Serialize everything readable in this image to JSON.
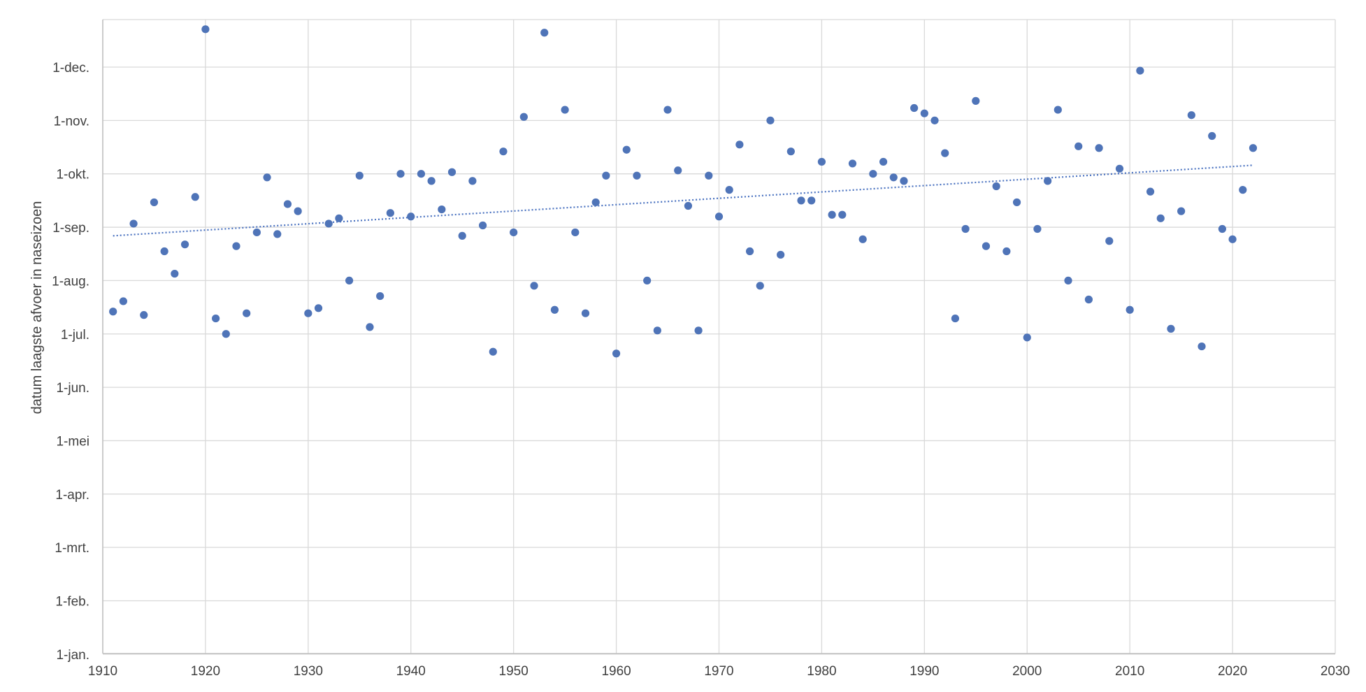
{
  "chart_data": {
    "type": "scatter",
    "ylabel": "datum laagste afvoer in naseizoen",
    "xlim": [
      1910,
      2030
    ],
    "x_ticks": [
      "1910",
      "1920",
      "1930",
      "1940",
      "1950",
      "1960",
      "1970",
      "1980",
      "1990",
      "2000",
      "2010",
      "2020",
      "2030"
    ],
    "y_ticks": [
      "1-jan.",
      "1-feb.",
      "1-mrt.",
      "1-apr.",
      "1-mei",
      "1-jun.",
      "1-jul.",
      "1-aug.",
      "1-sep.",
      "1-okt.",
      "1-nov.",
      "1-dec."
    ],
    "grid": true,
    "trendline": {
      "style": "dotted",
      "start": [
        1911,
        "27-aug."
      ],
      "end": [
        2022,
        "6-okt."
      ]
    },
    "series": [
      {
        "color": "#4f74b8",
        "points": [
          [
            1911,
            "14-jul."
          ],
          [
            1912,
            "20-jul."
          ],
          [
            1913,
            "3-sep."
          ],
          [
            1914,
            "12-jul."
          ],
          [
            1915,
            "15-sep."
          ],
          [
            1916,
            "18-aug."
          ],
          [
            1917,
            "5-aug."
          ],
          [
            1918,
            "22-aug."
          ],
          [
            1919,
            "18-sep."
          ],
          [
            1920,
            "23-dec."
          ],
          [
            1921,
            "10-jul."
          ],
          [
            1922,
            "1-jul."
          ],
          [
            1923,
            "21-aug."
          ],
          [
            1924,
            "13-jul."
          ],
          [
            1925,
            "29-aug."
          ],
          [
            1926,
            "29-sep."
          ],
          [
            1927,
            "28-aug."
          ],
          [
            1928,
            "14-sep."
          ],
          [
            1929,
            "10-sep."
          ],
          [
            1930,
            "13-jul."
          ],
          [
            1931,
            "16-jul."
          ],
          [
            1932,
            "3-sep."
          ],
          [
            1933,
            "6-sep."
          ],
          [
            1934,
            "1-aug."
          ],
          [
            1935,
            "30-sep."
          ],
          [
            1936,
            "5-jul."
          ],
          [
            1937,
            "23-jul."
          ],
          [
            1938,
            "9-sep."
          ],
          [
            1939,
            "1-okt."
          ],
          [
            1940,
            "7-sep."
          ],
          [
            1941,
            "1-okt."
          ],
          [
            1942,
            "27-sep."
          ],
          [
            1943,
            "11-sep."
          ],
          [
            1944,
            "2-okt."
          ],
          [
            1945,
            "27-aug."
          ],
          [
            1946,
            "27-sep."
          ],
          [
            1947,
            "2-sep."
          ],
          [
            1948,
            "21-jun."
          ],
          [
            1949,
            "14-okt."
          ],
          [
            1950,
            "29-aug."
          ],
          [
            1951,
            "3-nov."
          ],
          [
            1952,
            "29-jul."
          ],
          [
            1953,
            "21-dec."
          ],
          [
            1954,
            "15-jul."
          ],
          [
            1955,
            "7-nov."
          ],
          [
            1956,
            "29-aug."
          ],
          [
            1957,
            "13-jul."
          ],
          [
            1958,
            "15-sep."
          ],
          [
            1959,
            "30-sep."
          ],
          [
            1960,
            "20-jun."
          ],
          [
            1961,
            "15-okt."
          ],
          [
            1962,
            "30-sep."
          ],
          [
            1963,
            "1-aug."
          ],
          [
            1964,
            "3-jul."
          ],
          [
            1965,
            "7-nov."
          ],
          [
            1966,
            "3-okt."
          ],
          [
            1967,
            "13-sep."
          ],
          [
            1968,
            "3-jul."
          ],
          [
            1969,
            "30-sep."
          ],
          [
            1970,
            "7-sep."
          ],
          [
            1971,
            "22-sep."
          ],
          [
            1972,
            "18-okt."
          ],
          [
            1973,
            "18-aug."
          ],
          [
            1974,
            "29-jul."
          ],
          [
            1975,
            "1-nov."
          ],
          [
            1976,
            "16-aug."
          ],
          [
            1977,
            "14-okt."
          ],
          [
            1978,
            "16-sep."
          ],
          [
            1979,
            "16-sep."
          ],
          [
            1980,
            "8-okt."
          ],
          [
            1981,
            "8-sep."
          ],
          [
            1982,
            "8-sep."
          ],
          [
            1983,
            "7-okt."
          ],
          [
            1984,
            "25-aug."
          ],
          [
            1985,
            "1-okt."
          ],
          [
            1986,
            "8-okt."
          ],
          [
            1987,
            "29-sep."
          ],
          [
            1988,
            "27-sep."
          ],
          [
            1989,
            "8-nov."
          ],
          [
            1990,
            "5-nov."
          ],
          [
            1991,
            "1-nov."
          ],
          [
            1992,
            "13-okt."
          ],
          [
            1993,
            "10-jul."
          ],
          [
            1994,
            "31-aug."
          ],
          [
            1995,
            "12-nov."
          ],
          [
            1996,
            "21-aug."
          ],
          [
            1997,
            "24-sep."
          ],
          [
            1998,
            "18-aug."
          ],
          [
            1999,
            "15-sep."
          ],
          [
            2000,
            "29-jun."
          ],
          [
            2001,
            "31-aug."
          ],
          [
            2002,
            "27-sep."
          ],
          [
            2003,
            "7-nov."
          ],
          [
            2004,
            "1-aug."
          ],
          [
            2005,
            "17-okt."
          ],
          [
            2006,
            "21-jul."
          ],
          [
            2007,
            "16-okt."
          ],
          [
            2008,
            "24-aug."
          ],
          [
            2009,
            "4-okt."
          ],
          [
            2010,
            "15-jul."
          ],
          [
            2011,
            "29-nov."
          ],
          [
            2012,
            "21-sep."
          ],
          [
            2013,
            "6-sep."
          ],
          [
            2014,
            "4-jul."
          ],
          [
            2015,
            "10-sep."
          ],
          [
            2016,
            "4-nov."
          ],
          [
            2017,
            "24-jun."
          ],
          [
            2018,
            "23-okt."
          ],
          [
            2019,
            "31-aug."
          ],
          [
            2020,
            "25-aug."
          ],
          [
            2021,
            "22-sep."
          ],
          [
            2022,
            "16-okt."
          ]
        ]
      }
    ]
  }
}
